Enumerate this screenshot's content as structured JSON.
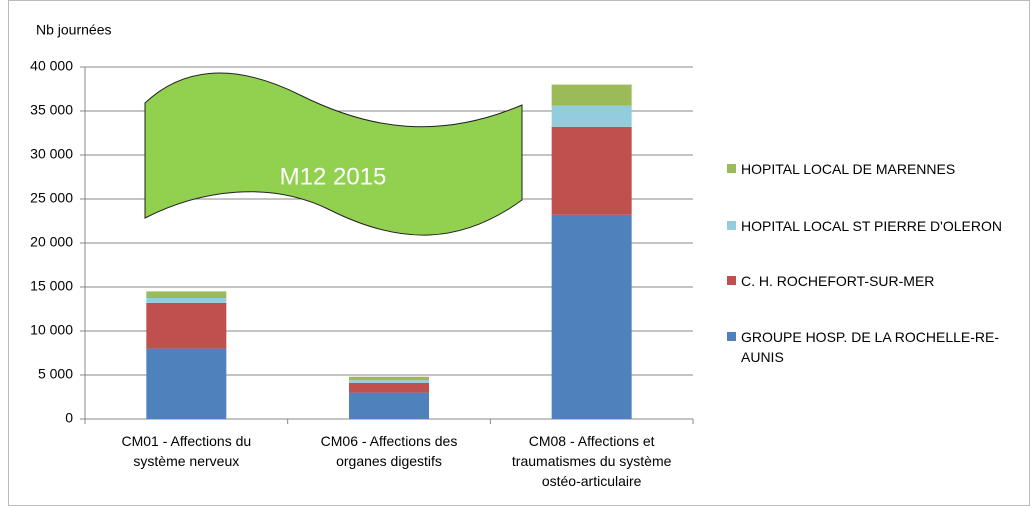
{
  "chart_data": {
    "type": "stacked_bar",
    "y_label": "Nb journées",
    "annotation": "M12 2015",
    "categories": [
      "CM01 - Affections du système nerveux",
      "CM06 - Affections des organes digestifs",
      "CM08 - Affections et traumatismes du système ostéo-articulaire"
    ],
    "series": [
      {
        "name": "GROUPE HOSP. DE LA ROCHELLE-RE-AUNIS",
        "color": "#4f81bd",
        "values": [
          8000,
          3000,
          23200
        ]
      },
      {
        "name": "C. H. ROCHEFORT-SUR-MER",
        "color": "#c0504d",
        "values": [
          5200,
          1100,
          10000
        ]
      },
      {
        "name": "HOPITAL LOCAL ST PIERRE D'OLERON",
        "color": "#93cddd",
        "values": [
          550,
          300,
          2400
        ]
      },
      {
        "name": "HOPITAL LOCAL DE MARENNES",
        "color": "#9bbb59",
        "values": [
          750,
          400,
          2400
        ]
      }
    ],
    "ylim": [
      0,
      40000
    ],
    "yticks": [
      0,
      {
        "value": 5000,
        "label": "5 000"
      },
      {
        "value": 10000,
        "label": "10 000"
      },
      {
        "value": 15000,
        "label": "15 000"
      },
      {
        "value": 20000,
        "label": "20 000"
      },
      {
        "value": 25000,
        "label": "25 000"
      },
      {
        "value": 30000,
        "label": "30 000"
      },
      {
        "value": 35000,
        "label": "35 000"
      },
      {
        "value": 40000,
        "label": "40 000"
      }
    ],
    "grid": true,
    "legend": "right"
  }
}
